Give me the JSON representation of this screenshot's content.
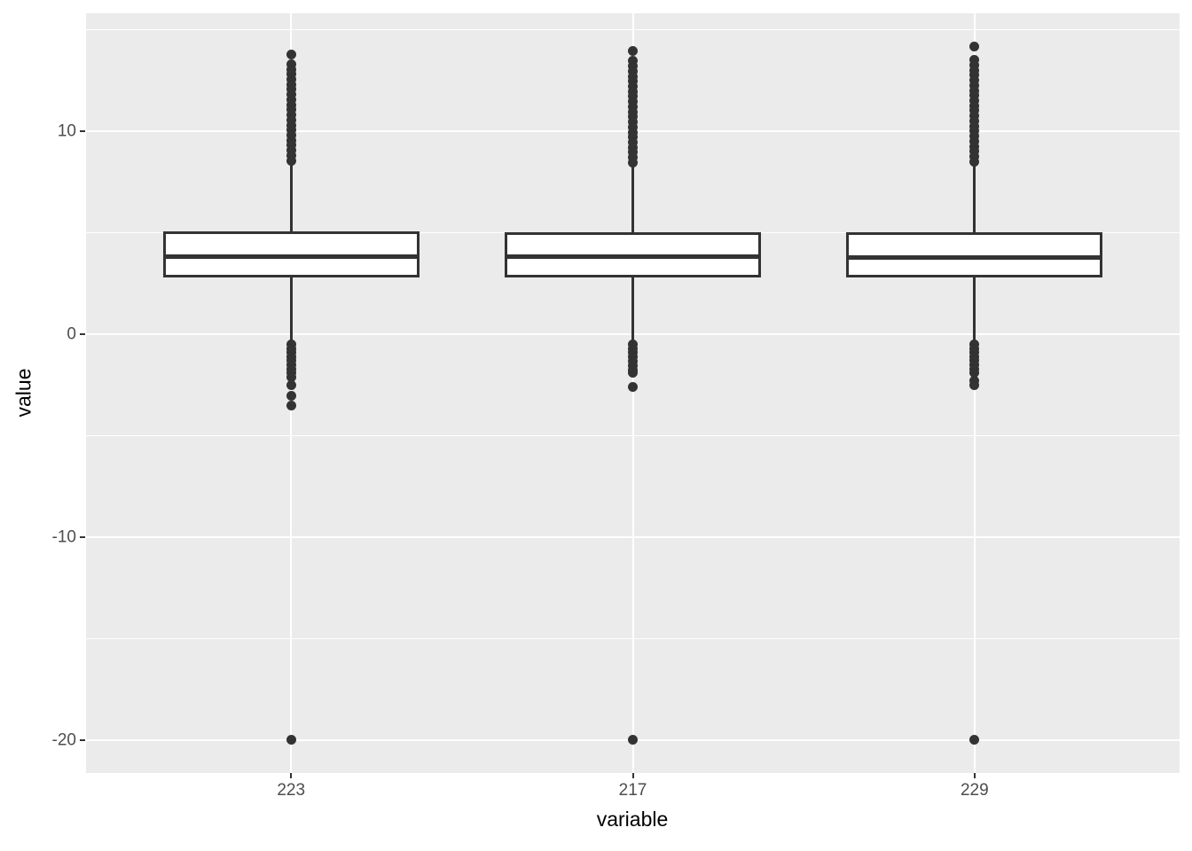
{
  "figure": {
    "kind": "ggplot-boxplot"
  },
  "chart_data": {
    "type": "boxplot",
    "title": "",
    "xlabel": "variable",
    "ylabel": "value",
    "categories": [
      "223",
      "217",
      "229"
    ],
    "y_ticks_major": [
      10,
      0,
      -10,
      -20
    ],
    "y_ticks_minor": [
      15,
      5,
      -5,
      -15
    ],
    "ylim": [
      -21.6,
      15.8
    ],
    "grid": true,
    "legend_position": "none",
    "colors": {
      "panel_background": "#EBEBEB",
      "gridline": "#FFFFFF",
      "box_stroke": "#333333",
      "box_fill": "#FFFFFF",
      "outlier": "#333333",
      "axis_text": "#4D4D4D",
      "axis_title": "#000000",
      "page_background": "#FFFFFF"
    },
    "series": [
      {
        "category": "223",
        "q1": 2.8,
        "median": 3.82,
        "q3": 5.05,
        "whisker_low": -0.3,
        "whisker_high": 8.45,
        "outliers_high": [
          13.75,
          13.3,
          13.05,
          12.8,
          12.55,
          12.3,
          12.05,
          11.8,
          11.55,
          11.3,
          11.05,
          10.8,
          10.55,
          10.3,
          10.05,
          9.8,
          9.55,
          9.3,
          9.05,
          8.8,
          8.55
        ],
        "outliers_low": [
          -0.5,
          -0.7,
          -0.9,
          -1.1,
          -1.3,
          -1.5,
          -1.7,
          -1.9,
          -2.1,
          -2.5,
          -3.05,
          -3.5,
          -19.95
        ]
      },
      {
        "category": "217",
        "q1": 2.8,
        "median": 3.8,
        "q3": 5.0,
        "whisker_low": -0.35,
        "whisker_high": 8.35,
        "outliers_high": [
          13.95,
          13.45,
          13.2,
          12.95,
          12.7,
          12.45,
          12.2,
          11.95,
          11.7,
          11.45,
          11.2,
          10.95,
          10.7,
          10.45,
          10.2,
          9.95,
          9.7,
          9.45,
          9.2,
          8.95,
          8.7,
          8.45
        ],
        "outliers_low": [
          -0.5,
          -0.7,
          -0.9,
          -1.1,
          -1.35,
          -1.55,
          -1.75,
          -1.9,
          -2.6,
          -19.95
        ]
      },
      {
        "category": "229",
        "q1": 2.8,
        "median": 3.78,
        "q3": 5.02,
        "whisker_low": -0.4,
        "whisker_high": 8.4,
        "outliers_high": [
          14.15,
          13.5,
          13.25,
          13.0,
          12.75,
          12.5,
          12.25,
          12.0,
          11.75,
          11.5,
          11.25,
          11.0,
          10.75,
          10.5,
          10.25,
          10.0,
          9.75,
          9.5,
          9.25,
          9.0,
          8.75,
          8.5
        ],
        "outliers_low": [
          -0.5,
          -0.7,
          -0.9,
          -1.1,
          -1.3,
          -1.5,
          -1.7,
          -1.9,
          -2.3,
          -2.5,
          -19.95
        ]
      }
    ]
  }
}
